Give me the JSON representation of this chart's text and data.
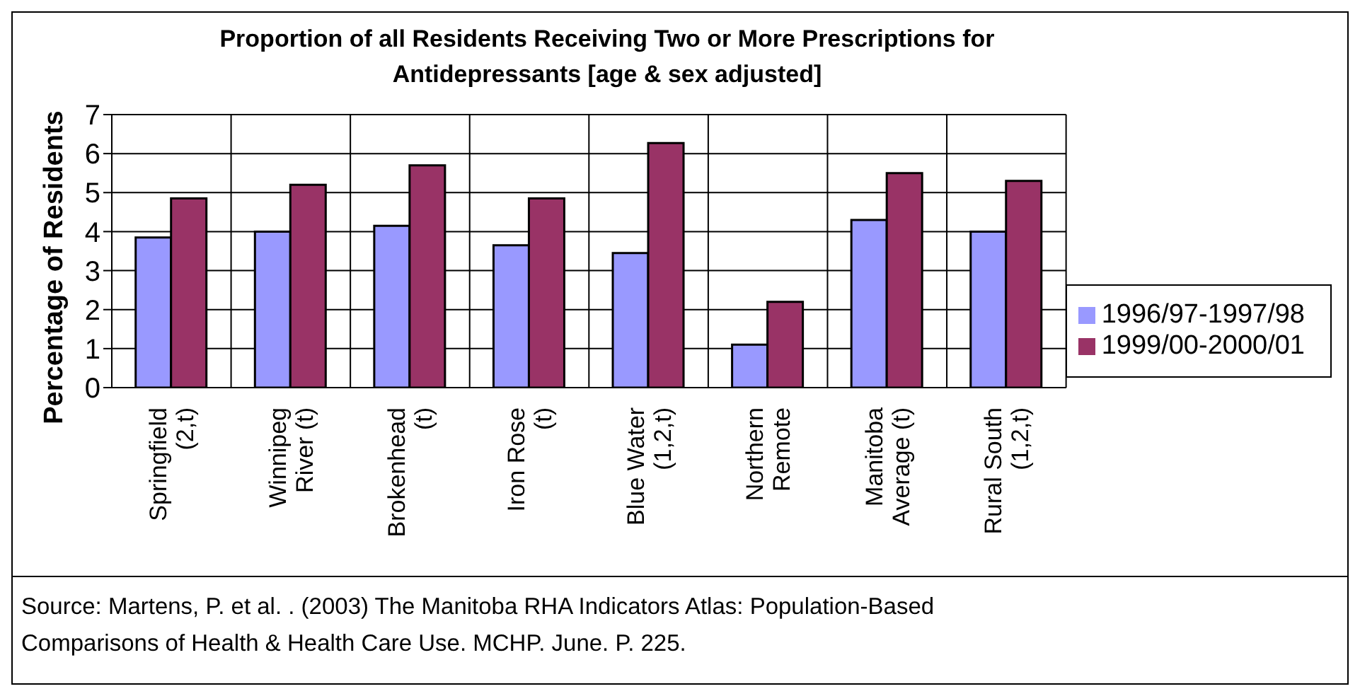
{
  "chart_data": {
    "type": "bar",
    "title": "Proportion of all Residents Receiving Two or More Prescriptions for Antidepressants [age & sex adjusted]",
    "ylabel": "Percentage of Residents",
    "categories": [
      "Springfield\n(2,t)",
      "Winnipeg\nRiver (t)",
      "Brokenhead\n(t)",
      "Iron Rose\n(t)",
      "Blue Water\n(1,2,t)",
      "Northern\nRemote",
      "Manitoba\nAverage (t)",
      "Rural South\n(1,2,t)"
    ],
    "series": [
      {
        "name": "1996/97-1997/98",
        "color": "#9999ff",
        "values": [
          3.85,
          4.0,
          4.15,
          3.65,
          3.45,
          1.1,
          4.3,
          4.0
        ]
      },
      {
        "name": "1999/00-2000/01",
        "color": "#993366",
        "values": [
          4.85,
          5.2,
          5.7,
          4.85,
          6.27,
          2.2,
          5.5,
          5.3
        ]
      }
    ],
    "ylim": [
      0,
      7
    ],
    "yticks": [
      0,
      1,
      2,
      3,
      4,
      5,
      6,
      7
    ],
    "grid": true,
    "legend": "right",
    "annotations": [
      "Source:  Martens, P. et al. . (2003) The Manitoba RHA Indicators Atlas: Population-Based Comparisons of Health & Health Care Use. MCHP. June.  P. 225."
    ]
  }
}
